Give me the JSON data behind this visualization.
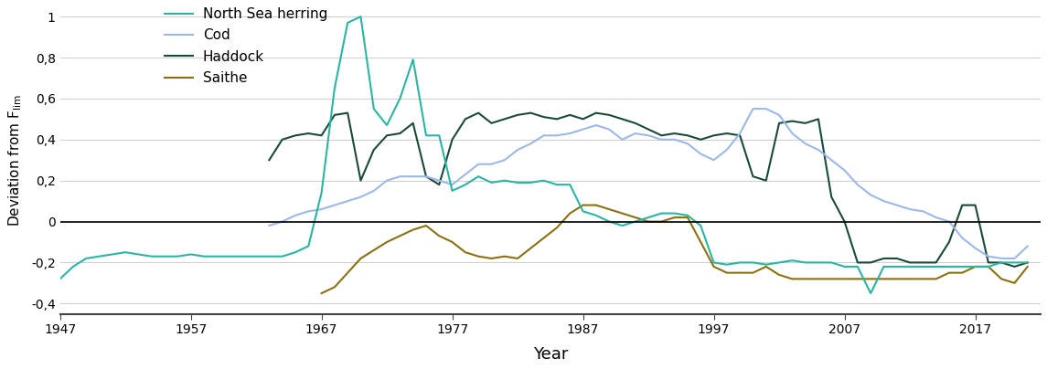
{
  "xlabel": "Year",
  "xlim": [
    1947,
    2022
  ],
  "ylim": [
    -0.45,
    1.05
  ],
  "yticks": [
    -0.4,
    -0.2,
    0,
    0.2,
    0.4,
    0.6,
    0.8,
    1
  ],
  "xticks": [
    1947,
    1957,
    1967,
    1977,
    1987,
    1997,
    2007,
    2017
  ],
  "colors": {
    "herring": "#2ab5a0",
    "cod": "#9db8e8",
    "haddock": "#1a4a3a",
    "saithe": "#8a7010"
  },
  "herring": {
    "years": [
      1947,
      1948,
      1949,
      1950,
      1951,
      1952,
      1953,
      1954,
      1955,
      1956,
      1957,
      1958,
      1959,
      1960,
      1961,
      1962,
      1963,
      1964,
      1965,
      1966,
      1967,
      1968,
      1969,
      1970,
      1971,
      1972,
      1973,
      1974,
      1975,
      1976,
      1977,
      1978,
      1979,
      1980,
      1981,
      1982,
      1983,
      1984,
      1985,
      1986,
      1987,
      1988,
      1989,
      1990,
      1991,
      1992,
      1993,
      1994,
      1995,
      1996,
      1997,
      1998,
      1999,
      2000,
      2001,
      2002,
      2003,
      2004,
      2005,
      2006,
      2007,
      2008,
      2009,
      2010,
      2011,
      2012,
      2013,
      2014,
      2015,
      2016,
      2017,
      2018,
      2019,
      2020,
      2021
    ],
    "values": [
      -0.28,
      -0.22,
      -0.18,
      -0.17,
      -0.16,
      -0.15,
      -0.16,
      -0.17,
      -0.17,
      -0.17,
      -0.16,
      -0.17,
      -0.17,
      -0.17,
      -0.17,
      -0.17,
      -0.17,
      -0.17,
      -0.15,
      -0.12,
      0.14,
      0.65,
      0.97,
      1.0,
      0.55,
      0.47,
      0.6,
      0.79,
      0.42,
      0.42,
      0.15,
      0.18,
      0.22,
      0.19,
      0.2,
      0.19,
      0.19,
      0.2,
      0.18,
      0.18,
      0.05,
      0.03,
      0.0,
      -0.02,
      0.0,
      0.02,
      0.04,
      0.04,
      0.03,
      -0.02,
      -0.2,
      -0.21,
      -0.2,
      -0.2,
      -0.21,
      -0.2,
      -0.19,
      -0.2,
      -0.2,
      -0.2,
      -0.22,
      -0.22,
      -0.35,
      -0.22,
      -0.22,
      -0.22,
      -0.22,
      -0.22,
      -0.22,
      -0.22,
      -0.22,
      -0.22,
      -0.2,
      -0.2,
      -0.2
    ]
  },
  "cod": {
    "years": [
      1963,
      1964,
      1965,
      1966,
      1967,
      1968,
      1969,
      1970,
      1971,
      1972,
      1973,
      1974,
      1975,
      1976,
      1977,
      1978,
      1979,
      1980,
      1981,
      1982,
      1983,
      1984,
      1985,
      1986,
      1987,
      1988,
      1989,
      1990,
      1991,
      1992,
      1993,
      1994,
      1995,
      1996,
      1997,
      1998,
      1999,
      2000,
      2001,
      2002,
      2003,
      2004,
      2005,
      2006,
      2007,
      2008,
      2009,
      2010,
      2011,
      2012,
      2013,
      2014,
      2015,
      2016,
      2017,
      2018,
      2019,
      2020,
      2021
    ],
    "values": [
      -0.02,
      0.0,
      0.03,
      0.05,
      0.06,
      0.08,
      0.1,
      0.12,
      0.15,
      0.2,
      0.22,
      0.22,
      0.22,
      0.2,
      0.18,
      0.23,
      0.28,
      0.28,
      0.3,
      0.35,
      0.38,
      0.42,
      0.42,
      0.43,
      0.45,
      0.47,
      0.45,
      0.4,
      0.43,
      0.42,
      0.4,
      0.4,
      0.38,
      0.33,
      0.3,
      0.35,
      0.43,
      0.55,
      0.55,
      0.52,
      0.43,
      0.38,
      0.35,
      0.3,
      0.25,
      0.18,
      0.13,
      0.1,
      0.08,
      0.06,
      0.05,
      0.02,
      0.0,
      -0.08,
      -0.13,
      -0.17,
      -0.18,
      -0.18,
      -0.12
    ]
  },
  "haddock": {
    "years": [
      1963,
      1964,
      1965,
      1966,
      1967,
      1968,
      1969,
      1970,
      1971,
      1972,
      1973,
      1974,
      1975,
      1976,
      1977,
      1978,
      1979,
      1980,
      1981,
      1982,
      1983,
      1984,
      1985,
      1986,
      1987,
      1988,
      1989,
      1990,
      1991,
      1992,
      1993,
      1994,
      1995,
      1996,
      1997,
      1998,
      1999,
      2000,
      2001,
      2002,
      2003,
      2004,
      2005,
      2006,
      2007,
      2008,
      2009,
      2010,
      2011,
      2012,
      2013,
      2014,
      2015,
      2016,
      2017,
      2018,
      2019,
      2020,
      2021
    ],
    "values": [
      0.3,
      0.4,
      0.42,
      0.43,
      0.42,
      0.52,
      0.53,
      0.2,
      0.35,
      0.42,
      0.43,
      0.48,
      0.22,
      0.18,
      0.4,
      0.5,
      0.53,
      0.48,
      0.5,
      0.52,
      0.53,
      0.51,
      0.5,
      0.52,
      0.5,
      0.53,
      0.52,
      0.5,
      0.48,
      0.45,
      0.42,
      0.43,
      0.42,
      0.4,
      0.42,
      0.43,
      0.42,
      0.22,
      0.2,
      0.48,
      0.49,
      0.48,
      0.5,
      0.12,
      0.0,
      -0.2,
      -0.2,
      -0.18,
      -0.18,
      -0.2,
      -0.2,
      -0.2,
      -0.1,
      0.08,
      0.08,
      -0.2,
      -0.2,
      -0.22,
      -0.2
    ]
  },
  "saithe": {
    "years": [
      1967,
      1968,
      1969,
      1970,
      1971,
      1972,
      1973,
      1974,
      1975,
      1976,
      1977,
      1978,
      1979,
      1980,
      1981,
      1982,
      1983,
      1984,
      1985,
      1986,
      1987,
      1988,
      1989,
      1990,
      1991,
      1992,
      1993,
      1994,
      1995,
      1996,
      1997,
      1998,
      1999,
      2000,
      2001,
      2002,
      2003,
      2004,
      2005,
      2006,
      2007,
      2008,
      2009,
      2010,
      2011,
      2012,
      2013,
      2014,
      2015,
      2016,
      2017,
      2018,
      2019,
      2020,
      2021
    ],
    "values": [
      -0.35,
      -0.32,
      -0.25,
      -0.18,
      -0.14,
      -0.1,
      -0.07,
      -0.04,
      -0.02,
      -0.07,
      -0.1,
      -0.15,
      -0.17,
      -0.18,
      -0.17,
      -0.18,
      -0.13,
      -0.08,
      -0.03,
      0.04,
      0.08,
      0.08,
      0.06,
      0.04,
      0.02,
      0.0,
      0.0,
      0.02,
      0.02,
      -0.1,
      -0.22,
      -0.25,
      -0.25,
      -0.25,
      -0.22,
      -0.26,
      -0.28,
      -0.28,
      -0.28,
      -0.28,
      -0.28,
      -0.28,
      -0.28,
      -0.28,
      -0.28,
      -0.28,
      -0.28,
      -0.28,
      -0.25,
      -0.25,
      -0.22,
      -0.22,
      -0.28,
      -0.3,
      -0.22
    ]
  }
}
